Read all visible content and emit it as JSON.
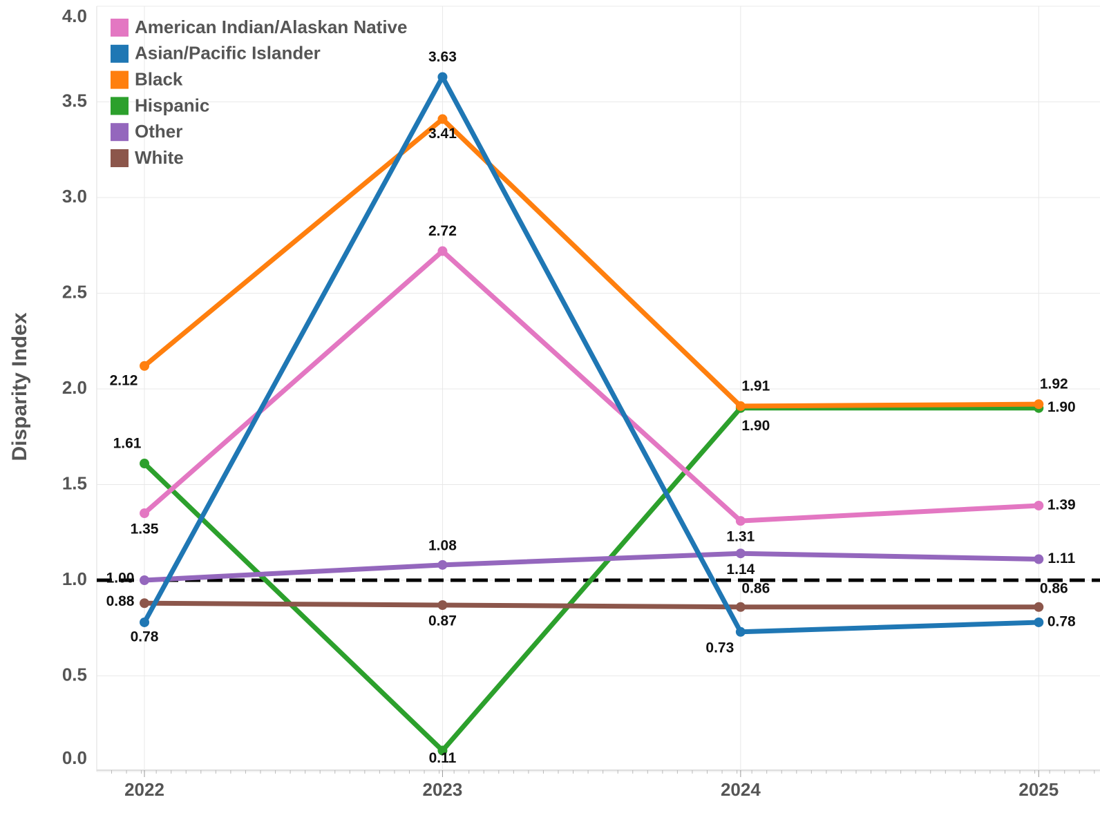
{
  "chart_data": {
    "type": "line",
    "y_label": "Disparity Index",
    "x": [
      2022,
      2023,
      2024,
      2025
    ],
    "xlim": [
      2021.84,
      2025.15
    ],
    "xticks": [
      2022,
      2023,
      2024,
      2025
    ],
    "ylim": [
      0,
      4
    ],
    "yticks": [
      {
        "value": 0,
        "label": "0.0"
      },
      {
        "value": 0.5,
        "label": "0.5"
      },
      {
        "value": 1,
        "label": "1.0"
      },
      {
        "value": 1.5,
        "label": "1.5"
      },
      {
        "value": 2,
        "label": "2.0"
      },
      {
        "value": 2.5,
        "label": "2.5"
      },
      {
        "value": 3,
        "label": "3.0"
      },
      {
        "value": 3.5,
        "label": "3.5"
      },
      {
        "value": 4,
        "label": "4.0"
      }
    ],
    "grid": true,
    "legend": "top-left",
    "reference_line": {
      "value": 1,
      "color": "#000000",
      "dashed": true
    },
    "series": [
      {
        "name": "American Indian/Alaskan Native",
        "color": "#e377c2",
        "values": [
          1.35,
          2.72,
          1.31,
          1.39
        ],
        "value_labels": [
          "1.35",
          "2.72",
          "1.31",
          "1.39"
        ]
      },
      {
        "name": "Asian/Pacific Islander",
        "color": "#1f77b4",
        "values": [
          0.78,
          3.63,
          0.73,
          0.78
        ],
        "value_labels": [
          "0.78",
          "3.63",
          "0.73",
          "0.78"
        ]
      },
      {
        "name": "Black",
        "color": "#ff7f0e",
        "values": [
          2.12,
          3.41,
          1.91,
          1.92
        ],
        "value_labels": [
          "2.12",
          "3.41",
          "1.91",
          "1.92"
        ]
      },
      {
        "name": "Hispanic",
        "color": "#2ca02c",
        "values": [
          1.61,
          0.11,
          1.9,
          1.9
        ],
        "value_labels": [
          "1.61",
          "0.11",
          "1.90",
          "1.90"
        ]
      },
      {
        "name": "Other",
        "color": "#9467bd",
        "values": [
          1,
          1.08,
          1.14,
          1.11
        ],
        "value_labels": [
          "1.00",
          "1.08",
          "1.14",
          "1.11"
        ]
      },
      {
        "name": "White",
        "color": "#8c564b",
        "values": [
          0.88,
          0.87,
          0.86,
          0.86
        ],
        "value_labels": [
          "0.88",
          "0.87",
          "0.86",
          "0.86"
        ]
      }
    ]
  }
}
